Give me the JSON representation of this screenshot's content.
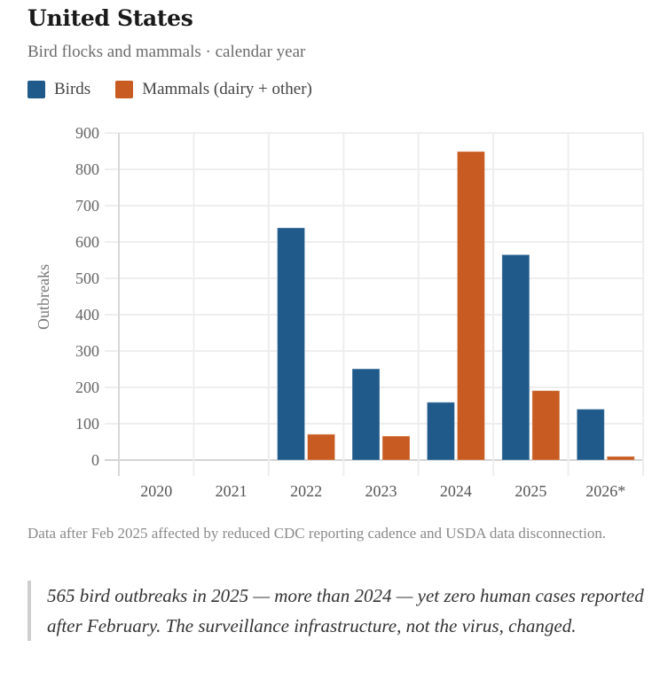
{
  "header": {
    "title": "United States",
    "subtitle": "Bird flocks and mammals · calendar year"
  },
  "legend": [
    {
      "label": "Birds",
      "color": "#1f5a8b"
    },
    {
      "label": "Mammals (dairy + other)",
      "color": "#c75b21"
    }
  ],
  "chart_data": {
    "type": "bar",
    "title": "United States",
    "subtitle": "Bird flocks and mammals · calendar year",
    "xlabel": "",
    "ylabel": "Outbreaks",
    "ylim": [
      0,
      900
    ],
    "yticks": [
      0,
      100,
      200,
      300,
      400,
      500,
      600,
      700,
      800,
      900
    ],
    "grid": true,
    "legend_position": "top-left",
    "categories": [
      "2020",
      "2021",
      "2022",
      "2023",
      "2024",
      "2025",
      "2026*"
    ],
    "series": [
      {
        "name": "Birds",
        "color": "#1f5a8b",
        "values": [
          0,
          0,
          639,
          251,
          159,
          565,
          140
        ]
      },
      {
        "name": "Mammals (dairy + other)",
        "color": "#c75b21",
        "values": [
          0,
          0,
          71,
          66,
          849,
          191,
          10
        ]
      }
    ]
  },
  "footnote": "Data after Feb 2025 affected by reduced CDC reporting cadence and USDA data disconnection.",
  "callout": "565 bird outbreaks in 2025 — more than 2024 — yet zero human cases reported after February. The surveillance infrastructure, not the virus, changed."
}
